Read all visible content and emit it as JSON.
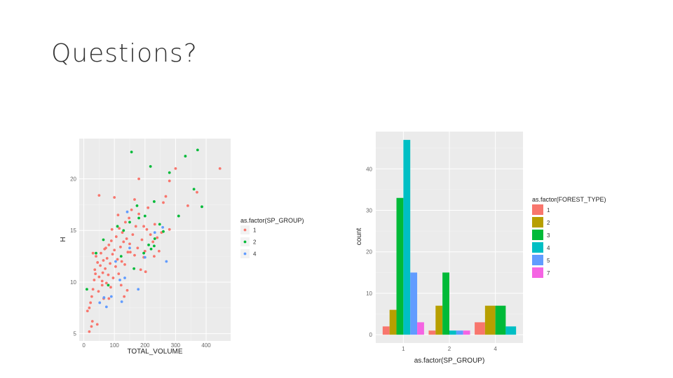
{
  "slide": {
    "title": "Questions?"
  },
  "chart_data": [
    {
      "type": "scatter",
      "xlabel": "TOTAL_VOLUME",
      "ylabel": "H",
      "xlim": [
        -15,
        480
      ],
      "ylim": [
        4.3,
        23.9
      ],
      "x_ticks": [
        0,
        100,
        200,
        300,
        400
      ],
      "y_ticks": [
        5,
        10,
        15,
        20
      ],
      "grid": true,
      "legend_title": "as.factor(SP_GROUP)",
      "legend_position": "right",
      "series": [
        {
          "name": "1",
          "color": "#F8766D",
          "points": [
            [
              12,
              7.2
            ],
            [
              18,
              7.5
            ],
            [
              22,
              8.0
            ],
            [
              26,
              8.6
            ],
            [
              30,
              9.3
            ],
            [
              34,
              10.2
            ],
            [
              36,
              11.2
            ],
            [
              40,
              12.5
            ],
            [
              45,
              11.9
            ],
            [
              48,
              9.1
            ],
            [
              50,
              10.5
            ],
            [
              54,
              11.6
            ],
            [
              56,
              12.8
            ],
            [
              60,
              9.7
            ],
            [
              62,
              10.9
            ],
            [
              65,
              8.4
            ],
            [
              68,
              13.2
            ],
            [
              70,
              11.3
            ],
            [
              74,
              9.9
            ],
            [
              76,
              12.3
            ],
            [
              80,
              10.7
            ],
            [
              82,
              13.6
            ],
            [
              86,
              11.8
            ],
            [
              88,
              9.5
            ],
            [
              90,
              14.0
            ],
            [
              94,
              12.7
            ],
            [
              96,
              10.4
            ],
            [
              100,
              13.1
            ],
            [
              104,
              11.5
            ],
            [
              106,
              14.4
            ],
            [
              110,
              12.2
            ],
            [
              114,
              10.8
            ],
            [
              116,
              15.2
            ],
            [
              120,
              13.4
            ],
            [
              124,
              12.0
            ],
            [
              126,
              14.8
            ],
            [
              130,
              13.9
            ],
            [
              134,
              11.7
            ],
            [
              136,
              15.8
            ],
            [
              140,
              14.2
            ],
            [
              144,
              12.9
            ],
            [
              148,
              16.2
            ],
            [
              150,
              13.7
            ],
            [
              156,
              17.0
            ],
            [
              160,
              14.6
            ],
            [
              166,
              12.6
            ],
            [
              170,
              15.4
            ],
            [
              176,
              13.3
            ],
            [
              180,
              16.6
            ],
            [
              186,
              11.2
            ],
            [
              190,
              14.1
            ],
            [
              196,
              12.4
            ],
            [
              200,
              13.0
            ],
            [
              206,
              15.1
            ],
            [
              210,
              17.2
            ],
            [
              218,
              14.6
            ],
            [
              226,
              13.9
            ],
            [
              232,
              15.6
            ],
            [
              240,
              14.3
            ],
            [
              246,
              13.0
            ],
            [
              254,
              14.8
            ],
            [
              260,
              17.7
            ],
            [
              268,
              18.3
            ],
            [
              280,
              19.8
            ],
            [
              300,
              21.0
            ],
            [
              340,
              17.4
            ],
            [
              370,
              18.7
            ],
            [
              445,
              21.0
            ],
            [
              50,
              18.4
            ],
            [
              100,
              18.2
            ],
            [
              180,
              20.0
            ],
            [
              25,
              5.7
            ],
            [
              44,
              5.9
            ],
            [
              28,
              6.2
            ],
            [
              18,
              5.2
            ],
            [
              60,
              10.1
            ],
            [
              122,
              9.7
            ],
            [
              132,
              8.6
            ],
            [
              142,
              9.2
            ],
            [
              72,
              13.3
            ],
            [
              112,
              16.5
            ],
            [
              38,
              10.8
            ],
            [
              82,
              8.4
            ],
            [
              152,
              12.9
            ],
            [
              196,
              15.4
            ],
            [
              230,
              12.5
            ],
            [
              202,
              11.0
            ],
            [
              64,
              12.1
            ],
            [
              92,
              15.1
            ],
            [
              166,
              18.0
            ],
            [
              280,
              15.1
            ],
            [
              30,
              12.8
            ]
          ]
        },
        {
          "name": "2",
          "color": "#00BA38",
          "points": [
            [
              156,
              22.6
            ],
            [
              218,
              21.2
            ],
            [
              332,
              22.2
            ],
            [
              372,
              22.8
            ],
            [
              280,
              20.6
            ],
            [
              360,
              19.0
            ],
            [
              386,
              17.3
            ],
            [
              310,
              16.4
            ],
            [
              230,
              17.8
            ],
            [
              174,
              17.4
            ],
            [
              180,
              16.2
            ],
            [
              150,
              15.8
            ],
            [
              130,
              15.0
            ],
            [
              248,
              15.6
            ],
            [
              260,
              14.9
            ],
            [
              232,
              14.2
            ],
            [
              220,
              13.2
            ],
            [
              212,
              13.6
            ],
            [
              196,
              12.8
            ],
            [
              122,
              12.5
            ],
            [
              110,
              15.4
            ],
            [
              164,
              11.3
            ],
            [
              64,
              14.1
            ],
            [
              40,
              12.8
            ],
            [
              10,
              9.3
            ],
            [
              80,
              9.7
            ],
            [
              200,
              16.4
            ],
            [
              230,
              13.5
            ]
          ]
        },
        {
          "name": "4",
          "color": "#619CFF",
          "points": [
            [
              52,
              8.0
            ],
            [
              74,
              7.6
            ],
            [
              90,
              8.6
            ],
            [
              104,
              12.0
            ],
            [
              118,
              10.2
            ],
            [
              134,
              10.4
            ],
            [
              142,
              16.8
            ],
            [
              150,
              13.3
            ],
            [
              178,
              9.3
            ],
            [
              200,
              12.4
            ],
            [
              232,
              14.8
            ],
            [
              258,
              15.3
            ],
            [
              270,
              12.0
            ],
            [
              66,
              8.5
            ],
            [
              124,
              8.1
            ]
          ]
        }
      ]
    },
    {
      "type": "bar",
      "xlabel": "as.factor(SP_GROUP)",
      "ylabel": "count",
      "categories": [
        "1",
        "2",
        "4"
      ],
      "ylim": [
        -2,
        49
      ],
      "y_ticks": [
        0,
        10,
        20,
        30,
        40
      ],
      "grid": true,
      "legend_title": "as.factor(FOREST_TYPE)",
      "legend_position": "right",
      "series": [
        {
          "name": "1",
          "color": "#F8766D",
          "values": [
            2,
            1,
            3
          ]
        },
        {
          "name": "2",
          "color": "#B79F00",
          "values": [
            6,
            7,
            7
          ]
        },
        {
          "name": "3",
          "color": "#00BA38",
          "values": [
            33,
            15,
            7
          ]
        },
        {
          "name": "4",
          "color": "#00BFC4",
          "values": [
            47,
            1,
            2
          ]
        },
        {
          "name": "5",
          "color": "#619CFF",
          "values": [
            15,
            1,
            0
          ]
        },
        {
          "name": "7",
          "color": "#F564E3",
          "values": [
            3,
            1,
            0
          ]
        }
      ]
    }
  ]
}
